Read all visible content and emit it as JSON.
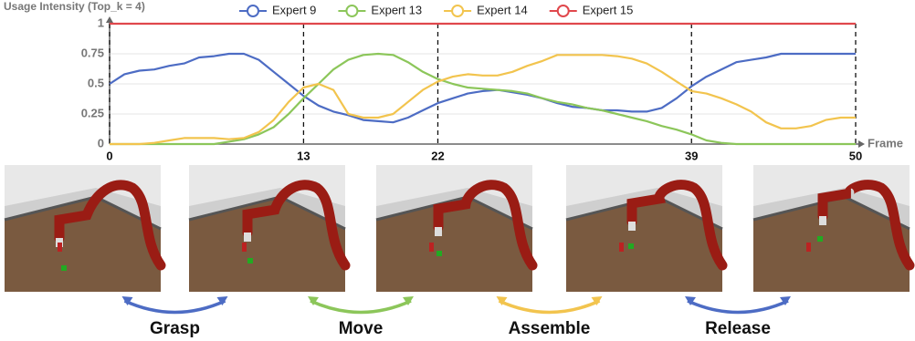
{
  "chart_data": {
    "type": "line",
    "title": "Usage Intensity (Top_k = 4)",
    "x_label": "Frame",
    "x": [
      0,
      1,
      2,
      3,
      4,
      5,
      6,
      7,
      8,
      9,
      10,
      11,
      12,
      13,
      14,
      15,
      16,
      17,
      18,
      19,
      20,
      21,
      22,
      23,
      24,
      25,
      26,
      27,
      28,
      29,
      30,
      31,
      32,
      33,
      34,
      35,
      36,
      37,
      38,
      39,
      40,
      41,
      42,
      43,
      44,
      45,
      46,
      47,
      48,
      49,
      50
    ],
    "series": [
      {
        "name": "Expert 9",
        "color": "#4d6cc4",
        "values": [
          0.5,
          0.58,
          0.61,
          0.62,
          0.65,
          0.67,
          0.72,
          0.73,
          0.75,
          0.75,
          0.7,
          0.6,
          0.5,
          0.4,
          0.32,
          0.27,
          0.24,
          0.2,
          0.19,
          0.18,
          0.22,
          0.28,
          0.34,
          0.38,
          0.42,
          0.44,
          0.45,
          0.43,
          0.41,
          0.38,
          0.34,
          0.31,
          0.3,
          0.28,
          0.28,
          0.27,
          0.27,
          0.3,
          0.38,
          0.48,
          0.56,
          0.62,
          0.68,
          0.7,
          0.72,
          0.75,
          0.75,
          0.75,
          0.75,
          0.75,
          0.75
        ]
      },
      {
        "name": "Expert 13",
        "color": "#8cc65a",
        "values": [
          0,
          0,
          0,
          0,
          0,
          0,
          0,
          0,
          0.02,
          0.04,
          0.08,
          0.14,
          0.25,
          0.38,
          0.5,
          0.62,
          0.7,
          0.74,
          0.75,
          0.74,
          0.68,
          0.6,
          0.54,
          0.5,
          0.47,
          0.46,
          0.45,
          0.44,
          0.42,
          0.38,
          0.35,
          0.33,
          0.3,
          0.28,
          0.25,
          0.22,
          0.19,
          0.15,
          0.12,
          0.08,
          0.03,
          0.01,
          0,
          0,
          0,
          0,
          0,
          0,
          0,
          0,
          0
        ]
      },
      {
        "name": "Expert 14",
        "color": "#f2c44e",
        "values": [
          0,
          0,
          0,
          0.01,
          0.03,
          0.05,
          0.05,
          0.05,
          0.04,
          0.05,
          0.1,
          0.2,
          0.35,
          0.47,
          0.5,
          0.45,
          0.25,
          0.22,
          0.22,
          0.25,
          0.35,
          0.45,
          0.52,
          0.56,
          0.58,
          0.57,
          0.57,
          0.6,
          0.65,
          0.69,
          0.74,
          0.74,
          0.74,
          0.74,
          0.73,
          0.71,
          0.67,
          0.6,
          0.52,
          0.44,
          0.42,
          0.38,
          0.33,
          0.27,
          0.18,
          0.13,
          0.13,
          0.15,
          0.2,
          0.22,
          0.22
        ]
      },
      {
        "name": "Expert 15",
        "color": "#e0474c",
        "values": [
          1,
          1,
          1,
          1,
          1,
          1,
          1,
          1,
          1,
          1,
          1,
          1,
          1,
          1,
          1,
          1,
          1,
          1,
          1,
          1,
          1,
          1,
          1,
          1,
          1,
          1,
          1,
          1,
          1,
          1,
          1,
          1,
          1,
          1,
          1,
          1,
          1,
          1,
          1,
          1,
          1,
          1,
          1,
          1,
          1,
          1,
          1,
          1,
          1,
          1,
          1
        ]
      }
    ],
    "xlim": [
      0,
      50
    ],
    "xticks": [
      0,
      13,
      22,
      39,
      50
    ],
    "ylim": [
      0,
      1
    ],
    "yticks": [
      0,
      0.25,
      0.5,
      0.75,
      1
    ],
    "grid": true
  },
  "phases": [
    {
      "label": "Grasp",
      "color": "#4d6cc4"
    },
    {
      "label": "Move",
      "color": "#8cc65a"
    },
    {
      "label": "Assemble",
      "color": "#f2c44e"
    },
    {
      "label": "Release",
      "color": "#4d6cc4"
    }
  ]
}
